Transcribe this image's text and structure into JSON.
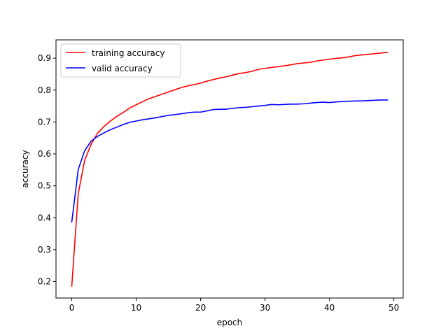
{
  "chart_data": {
    "type": "line",
    "title": "",
    "xlabel": "epoch",
    "ylabel": "accuracy",
    "xlim": [
      -2.45,
      51.45
    ],
    "ylim": [
      0.1485,
      0.9573
    ],
    "xticks": [
      0,
      10,
      20,
      30,
      40,
      50
    ],
    "xtick_labels": [
      "0",
      "10",
      "20",
      "30",
      "40",
      "50"
    ],
    "yticks": [
      0.2,
      0.3,
      0.4,
      0.5,
      0.6,
      0.7,
      0.8,
      0.9
    ],
    "ytick_labels": [
      "0.2",
      "0.3",
      "0.4",
      "0.5",
      "0.6",
      "0.7",
      "0.8",
      "0.9"
    ],
    "grid": false,
    "legend_position": "top-left",
    "x": [
      0,
      1,
      2,
      3,
      4,
      5,
      6,
      7,
      8,
      9,
      10,
      11,
      12,
      13,
      14,
      15,
      16,
      17,
      18,
      19,
      20,
      21,
      22,
      23,
      24,
      25,
      26,
      27,
      28,
      29,
      30,
      31,
      32,
      33,
      34,
      35,
      36,
      37,
      38,
      39,
      40,
      41,
      42,
      43,
      44,
      45,
      46,
      47,
      48,
      49
    ],
    "series": [
      {
        "name": "training accuracy",
        "color": "#ff0000",
        "values": [
          0.186,
          0.475,
          0.58,
          0.63,
          0.665,
          0.686,
          0.703,
          0.718,
          0.73,
          0.744,
          0.754,
          0.764,
          0.773,
          0.78,
          0.787,
          0.794,
          0.801,
          0.808,
          0.813,
          0.817,
          0.822,
          0.828,
          0.833,
          0.838,
          0.842,
          0.847,
          0.852,
          0.855,
          0.859,
          0.865,
          0.868,
          0.871,
          0.873,
          0.876,
          0.879,
          0.883,
          0.885,
          0.887,
          0.891,
          0.894,
          0.897,
          0.899,
          0.901,
          0.904,
          0.908,
          0.91,
          0.912,
          0.914,
          0.916,
          0.918
        ]
      },
      {
        "name": "valid accuracy",
        "color": "#0000ff",
        "values": [
          0.387,
          0.551,
          0.61,
          0.64,
          0.655,
          0.666,
          0.676,
          0.684,
          0.692,
          0.699,
          0.703,
          0.707,
          0.71,
          0.713,
          0.717,
          0.721,
          0.723,
          0.726,
          0.729,
          0.731,
          0.731,
          0.735,
          0.739,
          0.74,
          0.74,
          0.743,
          0.745,
          0.746,
          0.748,
          0.75,
          0.752,
          0.755,
          0.754,
          0.755,
          0.756,
          0.756,
          0.757,
          0.759,
          0.761,
          0.762,
          0.761,
          0.763,
          0.764,
          0.765,
          0.766,
          0.766,
          0.767,
          0.768,
          0.769,
          0.769
        ]
      }
    ]
  }
}
